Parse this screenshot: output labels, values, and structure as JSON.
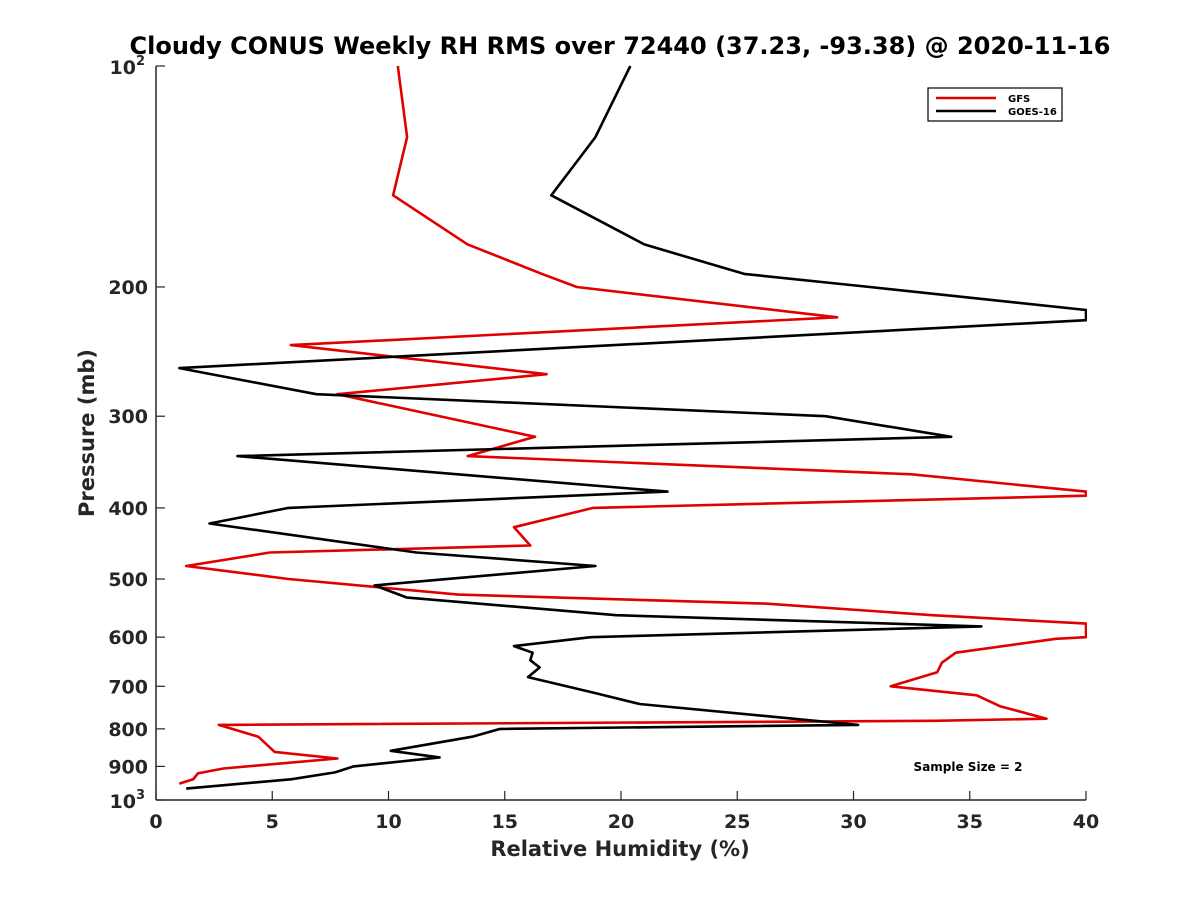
{
  "chart_data": {
    "type": "line",
    "title": "Cloudy CONUS Weekly RH RMS over 72440 (37.23, -93.38) @ 2020-11-16",
    "xlabel": "Relative Humidity (%)",
    "ylabel": "Pressure (mb)",
    "xlim": [
      0,
      40
    ],
    "ylim": [
      100,
      1000
    ],
    "y_scale": "log",
    "y_reversed": true,
    "grid": false,
    "legend_position": "top-right",
    "x_ticks": [
      "0",
      "5",
      "10",
      "15",
      "20",
      "25",
      "30",
      "35",
      "40"
    ],
    "y_ticks": [
      {
        "value": 100,
        "base": "10",
        "exp": "2"
      },
      {
        "value": 200,
        "label": "200"
      },
      {
        "value": 300,
        "label": "300"
      },
      {
        "value": 400,
        "label": "400"
      },
      {
        "value": 500,
        "label": "500"
      },
      {
        "value": 600,
        "label": "600"
      },
      {
        "value": 700,
        "label": "700"
      },
      {
        "value": 800,
        "label": "800"
      },
      {
        "value": 900,
        "label": "900"
      },
      {
        "value": 1000,
        "base": "10",
        "exp": "3"
      }
    ],
    "series": [
      {
        "name": "GFS",
        "color": "#e00000",
        "points": [
          [
            10.4,
            100
          ],
          [
            10.8,
            125
          ],
          [
            10.2,
            150
          ],
          [
            13.4,
            175
          ],
          [
            16.6,
            192
          ],
          [
            18.1,
            200
          ],
          [
            29.3,
            220
          ],
          [
            5.8,
            240
          ],
          [
            16.8,
            263
          ],
          [
            7.8,
            280
          ],
          [
            16.3,
            320
          ],
          [
            13.4,
            340
          ],
          [
            32.5,
            360
          ],
          [
            40.0,
            380
          ],
          [
            40.0,
            385
          ],
          [
            18.8,
            400
          ],
          [
            15.4,
            425
          ],
          [
            16.1,
            450
          ],
          [
            4.9,
            460
          ],
          [
            1.3,
            480
          ],
          [
            5.7,
            500
          ],
          [
            13.0,
            525
          ],
          [
            26.2,
            540
          ],
          [
            33.4,
            560
          ],
          [
            40.0,
            575
          ],
          [
            40.0,
            600
          ],
          [
            38.7,
            603
          ],
          [
            34.4,
            630
          ],
          [
            33.8,
            650
          ],
          [
            33.6,
            670
          ],
          [
            31.6,
            700
          ],
          [
            35.3,
            720
          ],
          [
            36.3,
            745
          ],
          [
            38.3,
            775
          ],
          [
            33.5,
            780
          ],
          [
            2.7,
            790
          ],
          [
            4.4,
            820
          ],
          [
            5.1,
            860
          ],
          [
            7.8,
            878
          ],
          [
            2.9,
            906
          ],
          [
            1.8,
            920
          ],
          [
            1.6,
            937
          ],
          [
            1.0,
            950
          ]
        ]
      },
      {
        "name": "GOES-16",
        "color": "#000000",
        "points": [
          [
            20.4,
            100
          ],
          [
            18.9,
            125
          ],
          [
            17.0,
            150
          ],
          [
            21.0,
            175
          ],
          [
            25.3,
            192
          ],
          [
            30.7,
            200
          ],
          [
            40.0,
            215
          ],
          [
            40.0,
            222
          ],
          [
            1.0,
            258
          ],
          [
            6.9,
            280
          ],
          [
            28.8,
            300
          ],
          [
            34.2,
            320
          ],
          [
            3.5,
            340
          ],
          [
            22.0,
            380
          ],
          [
            5.7,
            400
          ],
          [
            2.3,
            420
          ],
          [
            11.2,
            460
          ],
          [
            18.9,
            480
          ],
          [
            9.4,
            510
          ],
          [
            10.8,
            530
          ],
          [
            19.8,
            560
          ],
          [
            35.5,
            580
          ],
          [
            18.7,
            600
          ],
          [
            15.4,
            617
          ],
          [
            16.2,
            630
          ],
          [
            16.1,
            645
          ],
          [
            16.5,
            660
          ],
          [
            16.0,
            680
          ],
          [
            18.9,
            715
          ],
          [
            20.8,
            740
          ],
          [
            30.2,
            790
          ],
          [
            14.8,
            800
          ],
          [
            13.6,
            820
          ],
          [
            10.1,
            857
          ],
          [
            12.2,
            875
          ],
          [
            8.5,
            900
          ],
          [
            7.7,
            917
          ],
          [
            5.8,
            937
          ],
          [
            1.3,
            965
          ]
        ]
      }
    ],
    "annotation": "Sample Size = 2"
  }
}
